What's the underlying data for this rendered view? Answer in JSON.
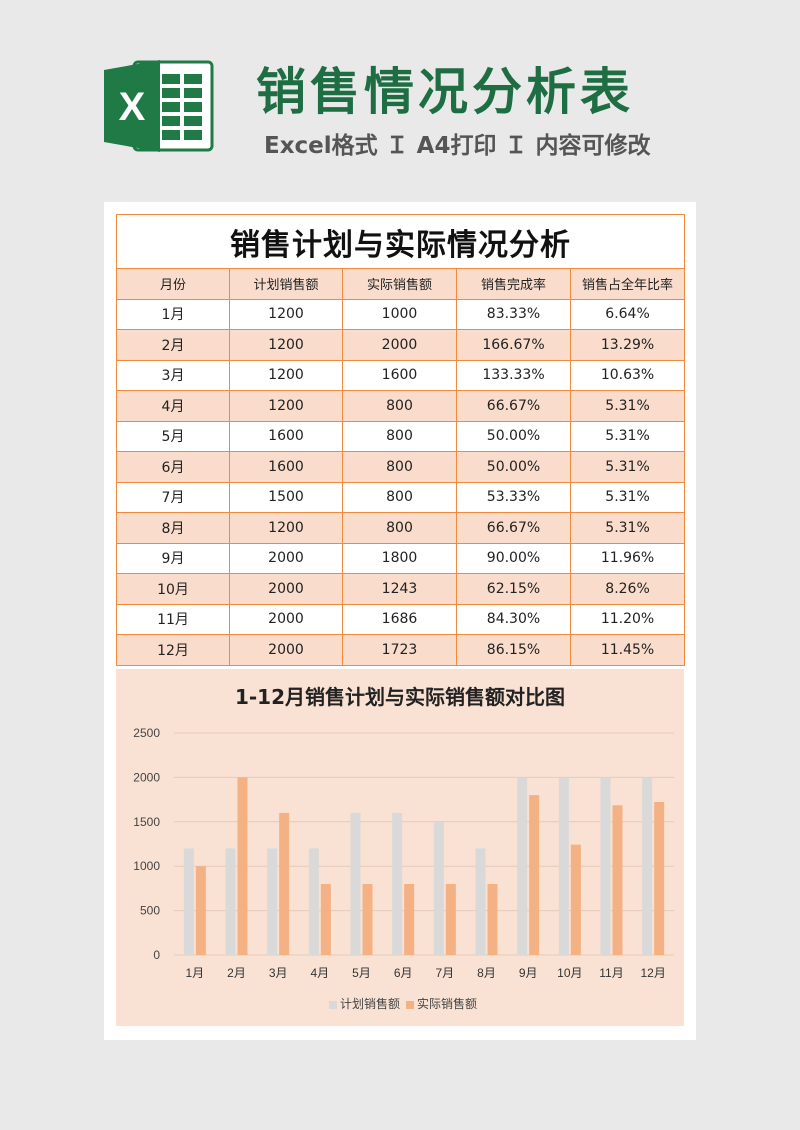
{
  "header": {
    "logo_letter": "X",
    "title": "销售情况分析表",
    "subtitle": "Excel格式 Ｉ A4打印 Ｉ 内容可修改"
  },
  "colors": {
    "brand_green": "#1f6e43",
    "table_border": "#f08a3c",
    "band_fill": "#f9dccc",
    "plan_bar": "#d9d9d9",
    "actual_bar": "#f4b183"
  },
  "table": {
    "title": "销售计划与实际情况分析",
    "headers": [
      "月份",
      "计划销售额",
      "实际销售额",
      "销售完成率",
      "销售占全年比率"
    ],
    "rows": [
      [
        "1月",
        "1200",
        "1000",
        "83.33%",
        "6.64%"
      ],
      [
        "2月",
        "1200",
        "2000",
        "166.67%",
        "13.29%"
      ],
      [
        "3月",
        "1200",
        "1600",
        "133.33%",
        "10.63%"
      ],
      [
        "4月",
        "1200",
        "800",
        "66.67%",
        "5.31%"
      ],
      [
        "5月",
        "1600",
        "800",
        "50.00%",
        "5.31%"
      ],
      [
        "6月",
        "1600",
        "800",
        "50.00%",
        "5.31%"
      ],
      [
        "7月",
        "1500",
        "800",
        "53.33%",
        "5.31%"
      ],
      [
        "8月",
        "1200",
        "800",
        "66.67%",
        "5.31%"
      ],
      [
        "9月",
        "2000",
        "1800",
        "90.00%",
        "11.96%"
      ],
      [
        "10月",
        "2000",
        "1243",
        "62.15%",
        "8.26%"
      ],
      [
        "11月",
        "2000",
        "1686",
        "84.30%",
        "11.20%"
      ],
      [
        "12月",
        "2000",
        "1723",
        "86.15%",
        "11.45%"
      ]
    ]
  },
  "chart_data": {
    "type": "bar",
    "title": "1-12月销售计划与实际销售额对比图",
    "categories": [
      "1月",
      "2月",
      "3月",
      "4月",
      "5月",
      "6月",
      "7月",
      "8月",
      "9月",
      "10月",
      "11月",
      "12月"
    ],
    "series": [
      {
        "name": "计划销售额",
        "color": "#d9d9d9",
        "values": [
          1200,
          1200,
          1200,
          1200,
          1600,
          1600,
          1500,
          1200,
          2000,
          2000,
          2000,
          2000
        ]
      },
      {
        "name": "实际销售额",
        "color": "#f4b183",
        "values": [
          1000,
          2000,
          1600,
          800,
          800,
          800,
          800,
          800,
          1800,
          1243,
          1686,
          1723
        ]
      }
    ],
    "yticks": [
      0,
      500,
      1000,
      1500,
      2000,
      2500
    ],
    "ylim": [
      0,
      2500
    ],
    "grid": true,
    "legend": "bottom"
  }
}
